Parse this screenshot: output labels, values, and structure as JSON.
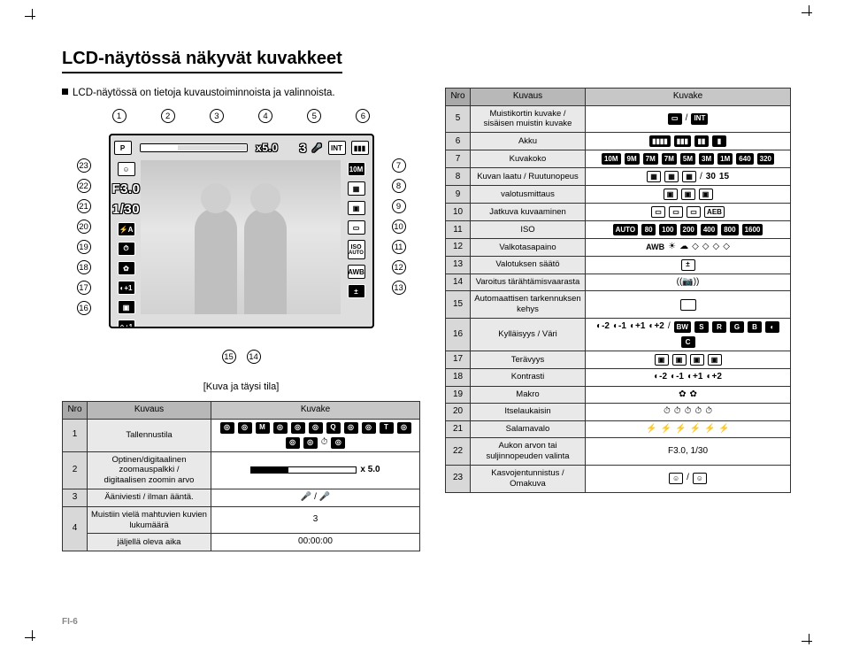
{
  "page": {
    "title": "LCD-näytössä näkyvät kuvakkeet",
    "intro": "LCD-näytössä on tietoja kuvaustoiminnoista ja valinnoista.",
    "caption": "[Kuva ja täysi tila]",
    "footer": "FI-6"
  },
  "lcd_overlay": {
    "zoom_text": "x5.0",
    "remaining_shots": "3",
    "size_badge": "10M",
    "aperture": "F3.0",
    "shutter": "1/30",
    "iso_label": "ISO",
    "iso_value": "AUTO",
    "awb": "AWB",
    "callout_top": [
      "1",
      "2",
      "3",
      "4",
      "5",
      "6"
    ],
    "callout_right": [
      "7",
      "8",
      "9",
      "10",
      "11",
      "12",
      "13"
    ],
    "callout_left": [
      "23",
      "22",
      "21",
      "20",
      "19",
      "18",
      "17",
      "16"
    ],
    "callout_bottom": [
      "15",
      "14"
    ]
  },
  "table_headers": {
    "nro": "Nro",
    "kuvaus": "Kuvaus",
    "kuvake": "Kuvake"
  },
  "left_table": [
    {
      "nro": "1",
      "kuvaus": "Tallennustila",
      "icons": [
        "camera",
        "rec",
        "M",
        "dual",
        "scene",
        "movie",
        "Q",
        "portrait",
        "landscape",
        "T",
        "night",
        "beach",
        "firework",
        "text",
        "sunset"
      ]
    },
    {
      "nro": "2",
      "kuvaus": "Optinen/digitaalinen zoomauspalkki /\ndigitaalisen zoomin arvo",
      "zoom": {
        "label": "x 5.0",
        "fill_pct": 35
      }
    },
    {
      "nro": "3",
      "kuvaus": "Ääniviesti / ilman ääntä.",
      "text": "🎤 / 🎤"
    },
    {
      "nro": "4a",
      "kuvaus": "Muistiin vielä mahtuvien kuvien lukumäärä",
      "text": "3",
      "rowspan_nro": "4"
    },
    {
      "nro": "4b",
      "kuvaus": "jäljellä oleva aika",
      "text": "00:00:00"
    }
  ],
  "right_table": [
    {
      "nro": "5",
      "kuvaus": "Muistikortin kuvake /\nsisäisen muistin kuvake",
      "icons": [
        "card",
        "/",
        "int"
      ]
    },
    {
      "nro": "6",
      "kuvaus": "Akku",
      "icons": [
        "batt4",
        "batt3",
        "batt2",
        "batt1"
      ]
    },
    {
      "nro": "7",
      "kuvaus": "Kuvakoko",
      "icons": [
        "10M",
        "9M",
        "7M",
        "7M",
        "5M",
        "3M",
        "1M",
        "640",
        "320"
      ]
    },
    {
      "nro": "8",
      "kuvaus": "Kuvan laatu / Ruutunopeus",
      "icons": [
        "q1",
        "q2",
        "q3",
        "/",
        "30",
        "15"
      ]
    },
    {
      "nro": "9",
      "kuvaus": "valotusmittaus",
      "icons": [
        "meter-multi",
        "meter-spot",
        "meter-cw"
      ]
    },
    {
      "nro": "10",
      "kuvaus": "Jatkuva kuvaaminen",
      "icons": [
        "single",
        "cont",
        "hspeed",
        "AEB"
      ]
    },
    {
      "nro": "11",
      "kuvaus": "ISO",
      "icons": [
        "ISO AUTO",
        "ISO 80",
        "ISO 100",
        "ISO 200",
        "ISO 400",
        "ISO 800",
        "ISO 1600"
      ]
    },
    {
      "nro": "12",
      "kuvaus": "Valkotasapaino",
      "icons": [
        "AWB",
        "☀",
        "☁",
        "fl1",
        "fl2",
        "bulb",
        "preset"
      ]
    },
    {
      "nro": "13",
      "kuvaus": "Valotuksen säätö",
      "icons": [
        "ev"
      ]
    },
    {
      "nro": "14",
      "kuvaus": "Varoitus tärähtämisvaarasta",
      "icons": [
        "shake"
      ]
    },
    {
      "nro": "15",
      "kuvaus": "Automaattisen tarkennuksen kehys",
      "icons": [
        "af-frame"
      ]
    },
    {
      "nro": "16",
      "kuvaus": "Kylläisyys / Väri",
      "icons": [
        "sat-2",
        "sat-1",
        "sat+1",
        "sat+2",
        "/",
        "BW",
        "S",
        "R",
        "G",
        "B",
        "neg",
        "C"
      ]
    },
    {
      "nro": "17",
      "kuvaus": "Terävyys",
      "icons": [
        "sh1",
        "sh2",
        "sh3",
        "sh4"
      ]
    },
    {
      "nro": "18",
      "kuvaus": "Kontrasti",
      "icons": [
        "c-2",
        "c-1",
        "c+1",
        "c+2"
      ]
    },
    {
      "nro": "19",
      "kuvaus": "Makro",
      "icons": [
        "macro-auto",
        "macro"
      ]
    },
    {
      "nro": "20",
      "kuvaus": "Itselaukaisin",
      "icons": [
        "t10",
        "t2",
        "t2s",
        "double",
        "motion"
      ]
    },
    {
      "nro": "21",
      "kuvaus": "Salamavalo",
      "icons": [
        "fA",
        "redeye",
        "fill",
        "slow",
        "off",
        "fix"
      ]
    },
    {
      "nro": "22",
      "kuvaus": "Aukon arvon tai suljinnopeuden valinta",
      "text": "F3.0, 1/30"
    },
    {
      "nro": "23",
      "kuvaus": "Kasvojentunnistus /\nOmakuva",
      "icons": [
        "face",
        "/",
        "self"
      ]
    }
  ],
  "style": {
    "page_bg": "#ffffff",
    "rule_color": "#000000",
    "th_bg": "#c7c7c7",
    "nro_bg": "#d8d8d8",
    "kuvaus_bg": "#e9e9e9",
    "lcd_bg": "#dedede",
    "font_family": "Arial",
    "title_fontsize_pt": 15,
    "body_fontsize_pt": 8,
    "table_fontsize_pt": 7.5
  }
}
